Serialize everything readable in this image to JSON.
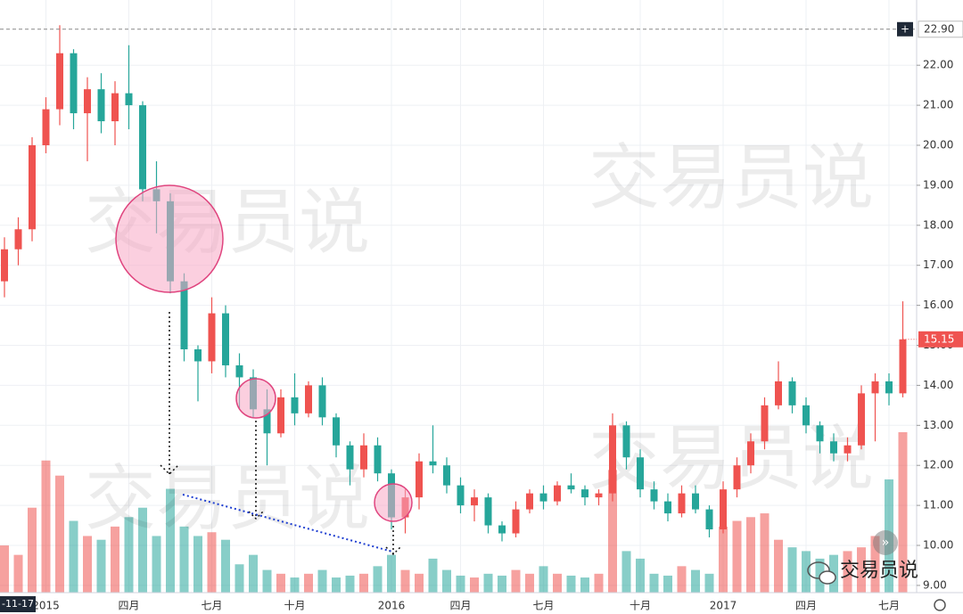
{
  "chart_data": {
    "type": "candlestick",
    "categories": [
      null,
      null,
      null,
      "2015",
      null,
      null,
      null,
      null,
      null,
      "四月",
      null,
      null,
      null,
      null,
      null,
      "七月",
      null,
      null,
      null,
      null,
      null,
      "十月",
      null,
      null,
      null,
      null,
      null,
      null,
      "2016",
      null,
      null,
      null,
      null,
      "四月",
      null,
      null,
      null,
      null,
      null,
      "七月",
      null,
      null,
      null,
      null,
      null,
      null,
      "十月",
      null,
      null,
      null,
      null,
      null,
      "2017",
      null,
      null,
      null,
      null,
      null,
      "四月",
      null,
      null,
      null,
      null,
      null,
      "七月",
      null
    ],
    "open": [
      16.6,
      17.4,
      17.9,
      20.0,
      20.9,
      22.3,
      20.8,
      21.4,
      20.6,
      21.3,
      21.0,
      18.9,
      18.6,
      16.6,
      14.9,
      14.6,
      15.8,
      14.5,
      14.2,
      13.4,
      12.8,
      13.7,
      13.3,
      14.0,
      13.2,
      12.5,
      11.9,
      12.5,
      11.8,
      10.7,
      11.2,
      12.1,
      12.0,
      11.5,
      11.0,
      11.2,
      10.5,
      10.3,
      10.9,
      11.3,
      11.1,
      11.5,
      11.4,
      11.2,
      11.3,
      13.0,
      12.2,
      11.4,
      11.1,
      10.8,
      11.3,
      10.9,
      10.4,
      11.4,
      12.0,
      12.6,
      13.5,
      14.1,
      13.5,
      13.0,
      12.6,
      12.3,
      12.5,
      13.8,
      14.1,
      13.8
    ],
    "high": [
      17.7,
      18.2,
      20.2,
      21.2,
      23.0,
      22.4,
      21.7,
      21.8,
      21.6,
      22.5,
      21.1,
      19.6,
      18.8,
      16.8,
      15.0,
      16.2,
      16.0,
      14.8,
      14.4,
      13.9,
      13.9,
      14.3,
      14.1,
      14.2,
      13.3,
      12.6,
      12.8,
      12.7,
      11.9,
      11.4,
      12.3,
      13.0,
      12.2,
      11.7,
      11.4,
      11.3,
      10.6,
      11.1,
      11.4,
      11.5,
      11.6,
      11.8,
      11.5,
      11.4,
      13.3,
      13.1,
      12.4,
      11.6,
      11.3,
      11.5,
      11.5,
      11.0,
      11.6,
      12.2,
      12.8,
      13.7,
      14.6,
      14.2,
      13.7,
      13.1,
      12.8,
      12.7,
      14.0,
      14.3,
      14.3,
      16.1
    ],
    "low": [
      16.2,
      17.0,
      17.6,
      19.8,
      20.5,
      20.4,
      19.6,
      20.3,
      20.0,
      20.4,
      18.6,
      17.8,
      16.3,
      14.6,
      13.6,
      14.3,
      14.2,
      13.4,
      13.2,
      12.0,
      12.7,
      13.0,
      13.2,
      13.0,
      12.2,
      11.5,
      11.7,
      11.6,
      10.4,
      10.3,
      10.9,
      11.8,
      11.3,
      10.8,
      10.6,
      10.3,
      10.1,
      10.2,
      10.8,
      10.9,
      11.0,
      11.3,
      11.0,
      11.0,
      11.1,
      11.9,
      11.2,
      10.9,
      10.6,
      10.7,
      10.8,
      10.2,
      10.3,
      11.2,
      11.8,
      12.4,
      13.4,
      13.3,
      12.8,
      12.3,
      12.1,
      12.1,
      12.4,
      12.6,
      13.5,
      13.7
    ],
    "close": [
      17.4,
      17.9,
      20.0,
      20.9,
      22.3,
      20.8,
      21.4,
      20.6,
      21.3,
      21.0,
      18.9,
      18.6,
      16.6,
      14.9,
      14.6,
      15.8,
      14.5,
      14.2,
      13.4,
      12.8,
      13.7,
      13.3,
      14.0,
      13.2,
      12.5,
      11.9,
      12.5,
      11.8,
      10.7,
      11.2,
      12.1,
      12.0,
      11.5,
      11.0,
      11.2,
      10.5,
      10.3,
      10.9,
      11.3,
      11.1,
      11.5,
      11.4,
      11.2,
      11.3,
      13.0,
      12.2,
      11.4,
      11.1,
      10.8,
      11.3,
      10.9,
      10.4,
      11.4,
      12.0,
      12.6,
      13.5,
      14.1,
      13.5,
      13.0,
      12.6,
      12.3,
      12.5,
      13.8,
      14.1,
      13.8,
      15.15
    ],
    "volume": [
      25,
      20,
      45,
      70,
      62,
      38,
      30,
      28,
      35,
      40,
      45,
      30,
      55,
      35,
      30,
      32,
      28,
      15,
      20,
      12,
      10,
      8,
      10,
      12,
      8,
      9,
      10,
      14,
      20,
      12,
      10,
      18,
      12,
      9,
      8,
      10,
      9,
      12,
      10,
      14,
      10,
      9,
      8,
      10,
      65,
      22,
      18,
      10,
      9,
      14,
      12,
      10,
      35,
      38,
      40,
      42,
      28,
      24,
      22,
      18,
      20,
      22,
      24,
      30,
      60,
      85
    ],
    "ylim": [
      8.82,
      23.63
    ],
    "yticks": [
      {
        "value": 9,
        "label": "9.00"
      },
      {
        "value": 10,
        "label": "10.00"
      },
      {
        "value": 11,
        "label": "11.00"
      },
      {
        "value": 12,
        "label": "12.00"
      },
      {
        "value": 13,
        "label": "13.00"
      },
      {
        "value": 14,
        "label": "14.00"
      },
      {
        "value": 15,
        "label": "15.00"
      },
      {
        "value": 16,
        "label": "16.00"
      },
      {
        "value": 17,
        "label": "17.00"
      },
      {
        "value": 18,
        "label": "18.00"
      },
      {
        "value": 19,
        "label": "19.00"
      },
      {
        "value": 20,
        "label": "20.00"
      },
      {
        "value": 21,
        "label": "21.00"
      },
      {
        "value": 22,
        "label": "22.00"
      }
    ],
    "up_color": "#ef5350",
    "down_color": "#26a69a",
    "grid": true,
    "high_line": {
      "value": 22.9,
      "label": "22.90"
    },
    "last_price": {
      "value": 15.15,
      "label": "15.15"
    },
    "crosshair_label": "-11-17",
    "watermark": "交易员说",
    "logo_text": "交易员说"
  }
}
